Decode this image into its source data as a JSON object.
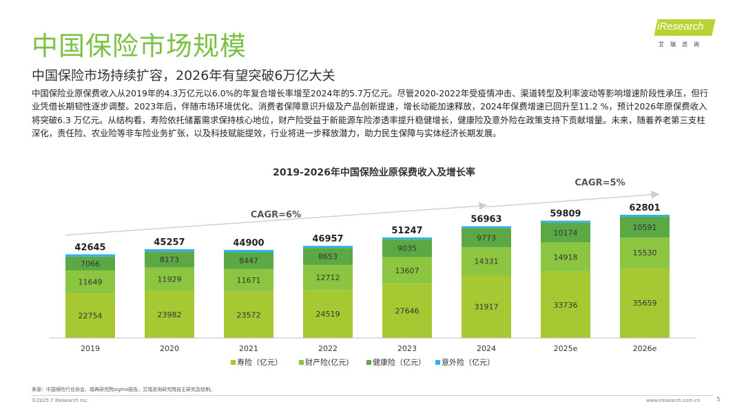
{
  "page": {
    "title": "中国保险市场规模",
    "subtitle": "中国保险市场持续扩容，2026年有望突破6万亿大关",
    "body": "中国保险业原保费收入从2019年的4.3万亿元以6.0%的年复合增长率增至2024年的5.7万亿元。尽管2020-2022年受疫情冲击、渠道转型及利率波动等影响增速阶段性承压，但行业凭借长期韧性逐步调整。2023年后，伴随市场环境优化、消费者保障意识升级及产品创新提速，增长动能加速释放，2024年保费增速已回升至11.2 %，预计2026年原保费收入将突破6.3 万亿元。从结构看，寿险依托储蓄需求保持核心地位，财产险受益于新能源车险渗透率提升稳健增长，健康险及意外险在政策支持下贡献增量。未来，随着养老第三支柱深化，责任险、农业险等非车险业务扩张，以及科技赋能提效，行业将进一步释放潜力，助力民生保障与实体经济长期发展。"
  },
  "logo": {
    "text": "iResearch",
    "sub": "艾瑞咨询"
  },
  "footer": {
    "source": "来源：中国保险行业协会、瑞再研究院sigma报告，艾瑞咨询研究院自主研究及绘制。",
    "copyright": "©2025.7 iResearch Inc.",
    "url": "www.iresearch.com.cn",
    "page": "5"
  },
  "colors": {
    "title": "#7ac143",
    "life": "#a5c833",
    "property": "#8cc640",
    "health": "#5ba845",
    "accident": "#2fb3e6"
  },
  "chart_data": {
    "type": "bar",
    "stacked": true,
    "title": "2019-2026年中国保险业原保费收入及增长率",
    "categories": [
      "2019",
      "2020",
      "2021",
      "2022",
      "2023",
      "2024",
      "2025e",
      "2026e"
    ],
    "series": [
      {
        "name": "寿险（亿元）",
        "color": "#a5c833",
        "values": [
          22754,
          23982,
          23572,
          24519,
          27646,
          31917,
          33736,
          35659
        ]
      },
      {
        "name": "财产险(亿元)",
        "color": "#8cc640",
        "values": [
          11649,
          11929,
          11671,
          12712,
          13607,
          14331,
          14918,
          15530
        ]
      },
      {
        "name": "健康险（亿元）",
        "color": "#5ba845",
        "values": [
          7066,
          8173,
          8447,
          8653,
          9035,
          9773,
          10174,
          10591
        ]
      },
      {
        "name": "意外险（亿元）",
        "color": "#2fb3e6",
        "values": [
          1176,
          1173,
          1210,
          1073,
          959,
          942,
          981,
          1021
        ]
      }
    ],
    "totals": [
      42645,
      45257,
      44900,
      46957,
      51247,
      56963,
      59809,
      62801
    ],
    "annotations": [
      {
        "text": "CAGR=6%",
        "from": "2019",
        "to": "2024"
      },
      {
        "text": "CAGR=5%",
        "from": "2024",
        "to": "2026e"
      }
    ],
    "ylim": [
      0,
      70000
    ],
    "grid": false,
    "legend": "bottom"
  }
}
